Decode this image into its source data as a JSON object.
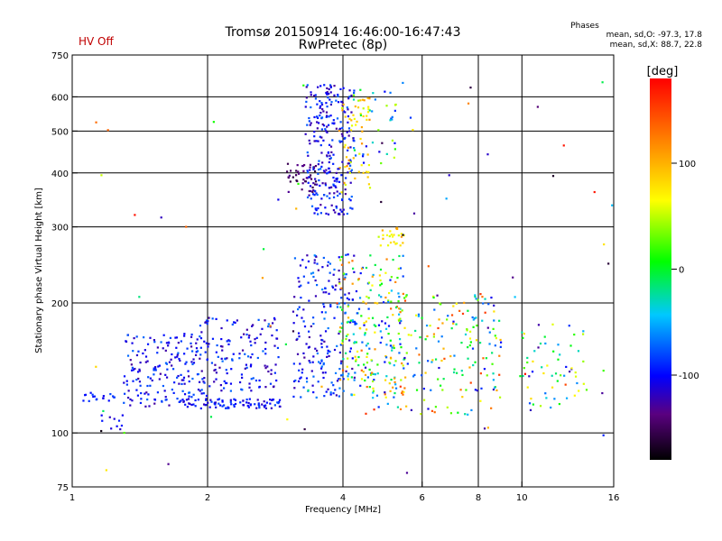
{
  "header": {
    "title_line1": "Tromsø 20150914 16:46:00-16:47:43",
    "title_line2": "RwPretec (8p)",
    "status": "HV Off",
    "phases_label": "Phases",
    "phases_o": "mean, sd,O: -97.3, 17.8",
    "phases_x": "mean, sd,X:  88.7, 22.8"
  },
  "colorbar": {
    "unit_label": "[deg]",
    "ticks": [
      100,
      0,
      -100
    ],
    "range": [
      -180,
      180
    ]
  },
  "chart_data": {
    "type": "scatter",
    "xlabel": "Frequency [MHz]",
    "ylabel": "Stationary phase Virtual Height [km]",
    "x_scale": "log",
    "y_scale": "log",
    "xlim": [
      1,
      16
    ],
    "ylim": [
      75,
      750
    ],
    "x_ticks": [
      1,
      2,
      4,
      6,
      8,
      10,
      16
    ],
    "y_ticks": [
      75,
      100,
      200,
      300,
      400,
      500,
      600,
      750
    ],
    "x_gridlines": [
      2,
      4,
      6,
      8,
      10
    ],
    "y_gridlines": [
      100,
      200,
      300,
      400,
      500,
      600
    ],
    "color_value": "phase [deg]",
    "point_groups": [
      {
        "x_range": [
          1.05,
          1.25
        ],
        "y_range": [
          118,
          124
        ],
        "count": 18,
        "phase": [
          -110,
          -80
        ]
      },
      {
        "x_range": [
          1.15,
          1.3
        ],
        "y_range": [
          102,
          110
        ],
        "count": 10,
        "phase": [
          -120,
          -90
        ]
      },
      {
        "x_range": [
          1.3,
          2.0
        ],
        "y_range": [
          115,
          170
        ],
        "count": 180,
        "phase": [
          -130,
          -70
        ]
      },
      {
        "x_range": [
          1.7,
          2.9
        ],
        "y_range": [
          114,
          120
        ],
        "count": 90,
        "phase": [
          -120,
          -80
        ]
      },
      {
        "x_range": [
          1.9,
          2.9
        ],
        "y_range": [
          125,
          185
        ],
        "count": 140,
        "phase": [
          -130,
          -70
        ]
      },
      {
        "x_range": [
          3.0,
          3.5
        ],
        "y_range": [
          360,
          420
        ],
        "count": 40,
        "phase": [
          -160,
          -130
        ]
      },
      {
        "x_range": [
          3.3,
          4.2
        ],
        "y_range": [
          320,
          640
        ],
        "count": 260,
        "phase": [
          -130,
          -70
        ]
      },
      {
        "x_range": [
          3.9,
          4.6
        ],
        "y_range": [
          360,
          600
        ],
        "count": 60,
        "phase": [
          50,
          120
        ]
      },
      {
        "x_range": [
          4.2,
          5.3
        ],
        "y_range": [
          420,
          630
        ],
        "count": 40,
        "phase": [
          -110,
          60
        ]
      },
      {
        "x_range": [
          3.1,
          4.3
        ],
        "y_range": [
          120,
          260
        ],
        "count": 200,
        "phase": [
          -130,
          -60
        ]
      },
      {
        "x_range": [
          3.9,
          5.5
        ],
        "y_range": [
          120,
          260
        ],
        "count": 180,
        "phase": [
          -100,
          140
        ]
      },
      {
        "x_range": [
          4.8,
          5.5
        ],
        "y_range": [
          270,
          300
        ],
        "count": 25,
        "phase": [
          50,
          120
        ]
      },
      {
        "x_range": [
          4.4,
          9.0
        ],
        "y_range": [
          110,
          210
        ],
        "count": 220,
        "phase": [
          -130,
          160
        ]
      },
      {
        "x_range": [
          9.9,
          14.0
        ],
        "y_range": [
          110,
          180
        ],
        "count": 60,
        "phase": [
          -130,
          80
        ]
      },
      {
        "x_range": [
          1.1,
          16.0
        ],
        "y_range": [
          78,
          650
        ],
        "count": 70,
        "phase": [
          -180,
          180
        ]
      }
    ]
  }
}
